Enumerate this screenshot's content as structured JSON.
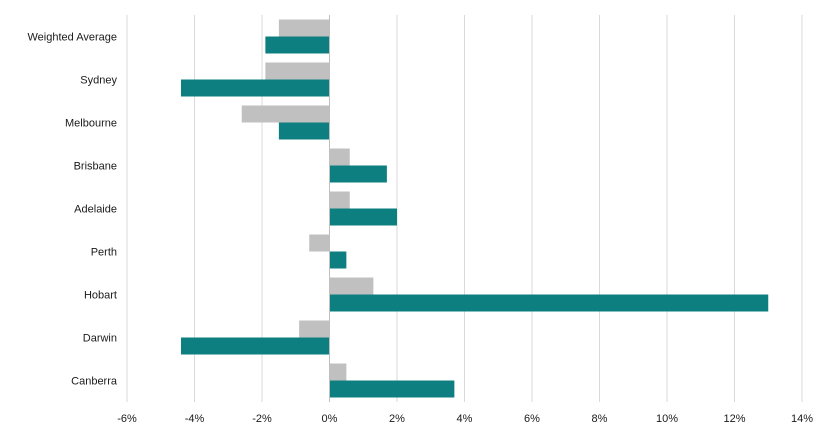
{
  "chart_data": {
    "type": "bar",
    "orientation": "horizontal",
    "categories": [
      "Weighted Average",
      "Sydney",
      "Melbourne",
      "Brisbane",
      "Adelaide",
      "Perth",
      "Hobart",
      "Darwin",
      "Canberra"
    ],
    "series": [
      {
        "color": "#c0c0c0",
        "values": [
          -1.5,
          -1.9,
          -2.6,
          0.6,
          0.6,
          -0.6,
          1.3,
          -0.9,
          0.5
        ]
      },
      {
        "color": "#0d7f80",
        "values": [
          -1.9,
          -4.4,
          -1.5,
          1.7,
          2.0,
          0.5,
          13.0,
          -4.4,
          3.7
        ]
      }
    ],
    "xlim": [
      -6,
      14
    ],
    "xticks": [
      -6,
      -4,
      -2,
      0,
      2,
      4,
      6,
      8,
      10,
      12,
      14
    ],
    "tick_format": "percent",
    "grid": "vertical"
  }
}
